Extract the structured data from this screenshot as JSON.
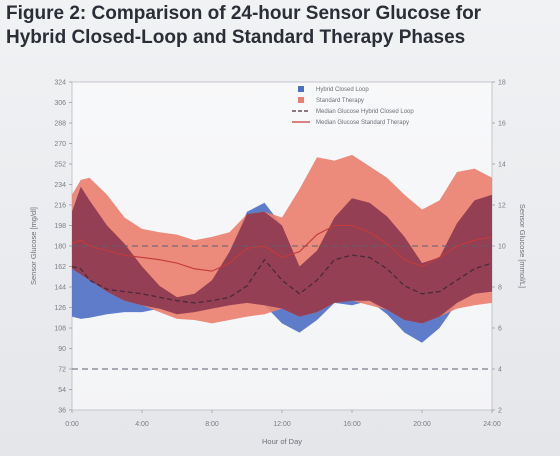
{
  "title": {
    "line1": "Figure 2: Comparison of 24-hour Sensor Glucose for",
    "line2": "Hybrid Closed-Loop and Standard Therapy Phases"
  },
  "chart_data": {
    "type": "area",
    "title": "Figure 2: Comparison of 24-hour Sensor Glucose for Hybrid Closed-Loop and Standard Therapy Phases",
    "xlabel": "Hour of Day",
    "ylabel": "Sensor Glucose [mg/dl]",
    "y2label": "Sensor Glucose [mmol/L]",
    "xlim": [
      0,
      24
    ],
    "ylim": [
      36,
      324
    ],
    "y2lim": [
      2,
      18
    ],
    "x_ticks": [
      0,
      4,
      8,
      12,
      16,
      20,
      24
    ],
    "x_tick_labels": [
      "0:00",
      "4:00",
      "8:00",
      "12:00",
      "16:00",
      "20:00",
      "24:00"
    ],
    "y_ticks": [
      36,
      54,
      72,
      90,
      108,
      126,
      144,
      162,
      180,
      198,
      216,
      234,
      252,
      270,
      288,
      306,
      324
    ],
    "y2_ticks": [
      2,
      4,
      6,
      8,
      10,
      12,
      14,
      16,
      18
    ],
    "reference_lines": [
      72,
      180
    ],
    "legend_position": "top-right",
    "legend": [
      "Hybrid Closed Loop",
      "Standard Therapy",
      "Median Glucose Hybrid Closed Loop",
      "Median Glucose Standard Therapy"
    ],
    "colors": {
      "hybrid_band": "#4f6fc4",
      "standard_band": "#ea8070",
      "overlap": "#8b3550",
      "reference": "#5b6070",
      "standard_median": "#c43a3a",
      "hybrid_median": "#4a2a3a"
    },
    "x": [
      0,
      0.5,
      1,
      2,
      3,
      4,
      5,
      6,
      7,
      8,
      9,
      10,
      11,
      12,
      13,
      14,
      15,
      16,
      17,
      18,
      19,
      20,
      21,
      22,
      23,
      24
    ],
    "series": [
      {
        "name": "Hybrid Closed Loop",
        "kind": "band",
        "upper": [
          210,
          232,
          220,
          198,
          182,
          162,
          145,
          135,
          138,
          150,
          175,
          210,
          218,
          198,
          162,
          176,
          205,
          222,
          218,
          206,
          188,
          165,
          170,
          200,
          220,
          225
        ],
        "lower": [
          118,
          116,
          117,
          120,
          122,
          122,
          125,
          120,
          122,
          125,
          128,
          130,
          128,
          112,
          104,
          115,
          130,
          128,
          132,
          120,
          104,
          95,
          108,
          130,
          138,
          140
        ]
      },
      {
        "name": "Standard Therapy",
        "kind": "band",
        "upper": [
          225,
          238,
          240,
          225,
          205,
          195,
          192,
          190,
          185,
          188,
          192,
          208,
          210,
          205,
          230,
          258,
          255,
          260,
          250,
          240,
          225,
          212,
          220,
          245,
          248,
          240
        ],
        "lower": [
          160,
          155,
          150,
          140,
          132,
          128,
          122,
          116,
          115,
          112,
          115,
          118,
          120,
          125,
          118,
          122,
          130,
          132,
          128,
          124,
          115,
          112,
          118,
          125,
          128,
          130
        ]
      },
      {
        "name": "Median Glucose Hybrid Closed Loop",
        "kind": "line",
        "style": "dashed",
        "values": [
          162,
          160,
          150,
          142,
          140,
          138,
          135,
          132,
          130,
          132,
          135,
          145,
          168,
          150,
          138,
          150,
          168,
          172,
          170,
          160,
          145,
          138,
          140,
          150,
          160,
          165
        ]
      },
      {
        "name": "Median Glucose Standard Therapy",
        "kind": "line",
        "style": "solid",
        "values": [
          182,
          185,
          180,
          176,
          172,
          170,
          168,
          165,
          160,
          158,
          165,
          178,
          180,
          170,
          175,
          190,
          198,
          198,
          192,
          182,
          168,
          162,
          170,
          180,
          185,
          188
        ]
      }
    ]
  }
}
